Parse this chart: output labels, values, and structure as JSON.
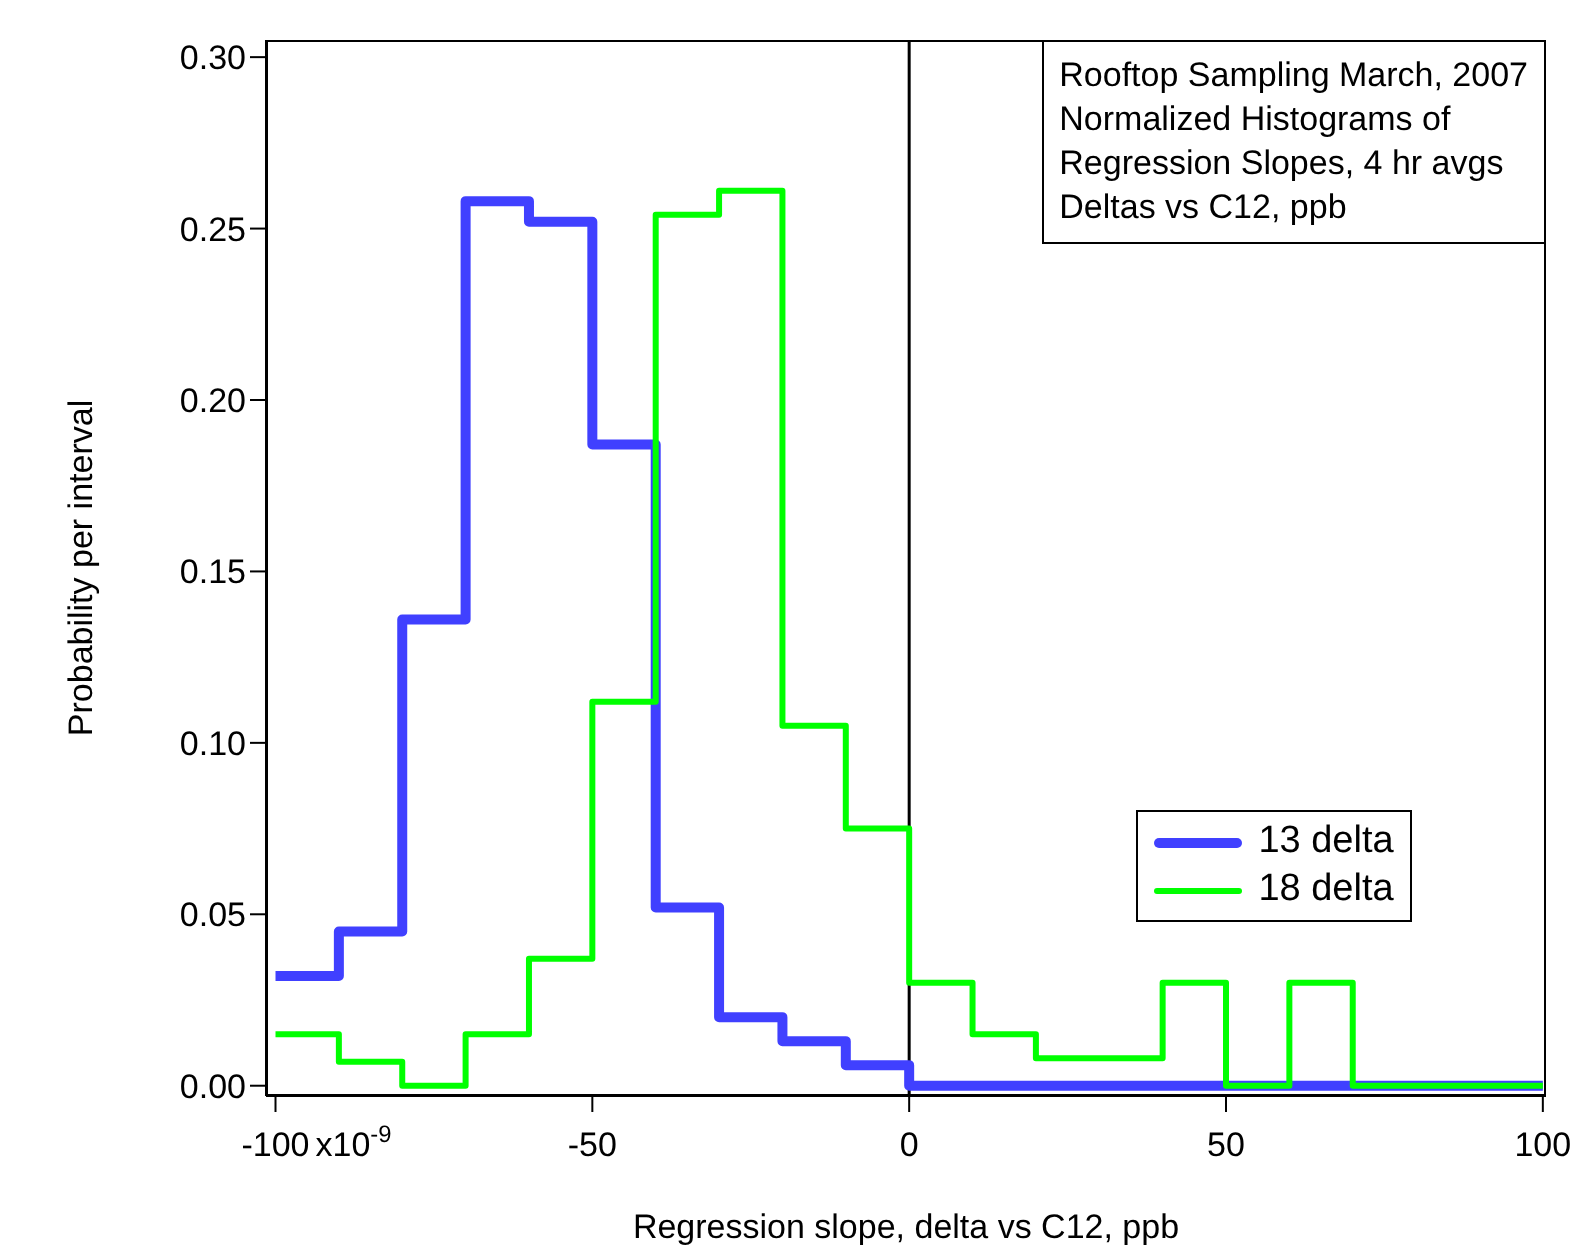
{
  "chart_data": {
    "type": "histogram",
    "title": "Rooftop Sampling March, 2007\nNormalized Histograms of\nRegression Slopes, 4 hr avgs\nDeltas vs C12, ppb",
    "xlabel": "Regression slope, delta vs C12, ppb",
    "ylabel": "Probability per interval",
    "bins": [
      -100,
      -90,
      -80,
      -70,
      -60,
      -50,
      -40,
      -30,
      -20,
      -10,
      0,
      10,
      20,
      30,
      40,
      50,
      60,
      70,
      80,
      90,
      100
    ],
    "series": [
      {
        "name": "13 delta",
        "color": "#4040ff",
        "values": [
          0.032,
          0.045,
          0.136,
          0.258,
          0.252,
          0.187,
          0.052,
          0.02,
          0.013,
          0.006,
          0,
          0,
          0,
          0,
          0,
          0,
          0,
          0,
          0,
          0
        ]
      },
      {
        "name": "18 delta",
        "color": "#00ff00",
        "values": [
          0.015,
          0.007,
          0,
          0.015,
          0.037,
          0.112,
          0.254,
          0.261,
          0.105,
          0.075,
          0.03,
          0.015,
          0.008,
          0.008,
          0.03,
          0,
          0.03,
          0,
          0,
          0
        ]
      }
    ],
    "xlim": [
      -101.5,
      100.5
    ],
    "ylim": [
      -0.003,
      0.305
    ],
    "xticks": [
      -100,
      -50,
      0,
      50,
      100
    ],
    "annotations": [
      "x10$^{-9}$"
    ],
    "yticks": [
      {
        "value": 0,
        "label": "0.00"
      },
      {
        "value": 0.05,
        "label": "0.05"
      },
      {
        "value": 0.1,
        "label": "0.10"
      },
      {
        "value": 0.15,
        "label": "0.15"
      },
      {
        "value": 0.2,
        "label": "0.20"
      },
      {
        "value": 0.25,
        "label": "0.25"
      },
      {
        "value": 0.3,
        "label": "0.30"
      }
    ],
    "ref_lines": [
      {
        "axis": "x",
        "value": 0,
        "color": "#000000"
      }
    ],
    "legend": "right"
  }
}
